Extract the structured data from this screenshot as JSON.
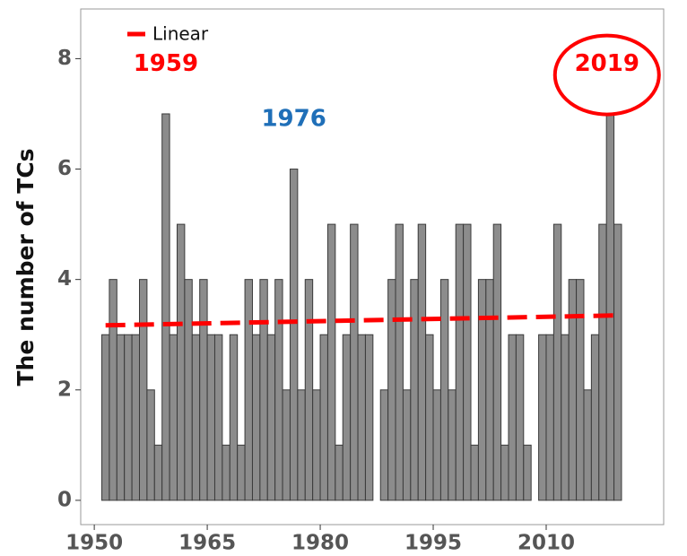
{
  "chart_data": {
    "type": "bar",
    "y_label": "The number of TCs",
    "x": [
      1951,
      1952,
      1953,
      1954,
      1955,
      1956,
      1957,
      1958,
      1959,
      1960,
      1961,
      1962,
      1963,
      1964,
      1965,
      1966,
      1967,
      1968,
      1969,
      1970,
      1971,
      1972,
      1973,
      1974,
      1975,
      1976,
      1977,
      1978,
      1979,
      1980,
      1981,
      1982,
      1983,
      1984,
      1985,
      1986,
      1987,
      1988,
      1989,
      1990,
      1991,
      1992,
      1993,
      1994,
      1995,
      1996,
      1997,
      1998,
      1999,
      2000,
      2001,
      2002,
      2003,
      2004,
      2005,
      2006,
      2007,
      2008,
      2009,
      2010,
      2011,
      2012,
      2013,
      2014,
      2015,
      2016,
      2017,
      2018,
      2019
    ],
    "values": [
      3,
      4,
      3,
      3,
      3,
      4,
      2,
      1,
      7,
      3,
      5,
      4,
      3,
      4,
      3,
      3,
      1,
      3,
      1,
      4,
      3,
      4,
      3,
      4,
      2,
      6,
      2,
      4,
      2,
      3,
      5,
      1,
      3,
      5,
      3,
      3,
      0,
      2,
      4,
      5,
      2,
      4,
      5,
      3,
      2,
      4,
      2,
      5,
      5,
      1,
      4,
      4,
      5,
      1,
      3,
      3,
      1,
      0,
      3,
      3,
      5,
      3,
      4,
      4,
      2,
      3,
      5,
      7,
      5
    ],
    "color": "#8c8c8c",
    "trend": {
      "name": "Linear",
      "color": "#ff0000",
      "x": [
        1951,
        2019
      ],
      "values": [
        3.17,
        3.35
      ]
    },
    "annotations": [
      {
        "text": "1959",
        "color": "#ff0000",
        "x": 1959,
        "y": 7.9
      },
      {
        "text": "1976",
        "color": "#1f6fb8",
        "x": 1976,
        "y": 6.9
      },
      {
        "text": "2019",
        "color": "#ff0000",
        "x": 2019,
        "y": 7.9,
        "circled": true
      }
    ],
    "xlim": [
      1948.2,
      2025.6
    ],
    "xticks": [
      1950,
      1965,
      1980,
      1995,
      2010
    ],
    "ylim": [
      -0.44,
      8.9
    ],
    "yticks": [
      0,
      2,
      4,
      6,
      8
    ],
    "legend_position": "upper left"
  }
}
